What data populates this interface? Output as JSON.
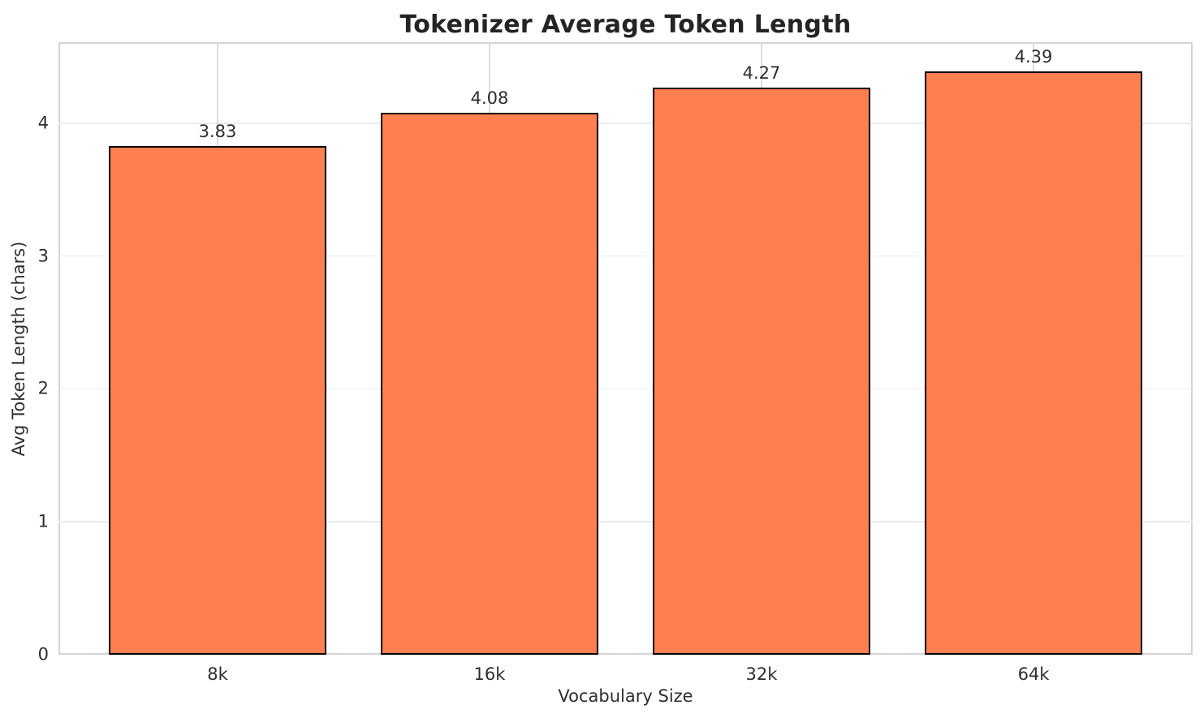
{
  "chart_data": {
    "type": "bar",
    "title": "Tokenizer Average Token Length",
    "xlabel": "Vocabulary Size",
    "ylabel": "Avg Token Length (chars)",
    "categories": [
      "8k",
      "16k",
      "32k",
      "64k"
    ],
    "values": [
      3.83,
      4.08,
      4.27,
      4.39
    ],
    "value_labels": [
      "3.83",
      "4.08",
      "4.27",
      "4.39"
    ],
    "yticks": [
      0,
      1,
      2,
      3,
      4
    ],
    "ylim": [
      0,
      4.61
    ],
    "xlim": [
      -0.585,
      3.585
    ],
    "bar_width": 0.8,
    "grid": true,
    "legend": false,
    "colors": {
      "bar_fill": "#FF7F50",
      "bar_edge": "#000000",
      "grid_h": "#ECECEC",
      "grid_v": "#DCDCDC",
      "spine": "#D4D4D4",
      "text": "#2E2E2E",
      "title_text": "#242424",
      "background": "#FFFFFF"
    }
  }
}
